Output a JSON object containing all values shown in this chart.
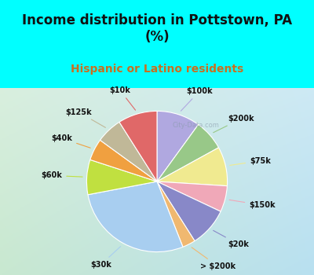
{
  "title": "Income distribution in Pottstown, PA\n(%)",
  "subtitle": "Hispanic or Latino residents",
  "bg_color": "#00FFFF",
  "chart_bg_colors": [
    "#c8e8d0",
    "#b8e0f0"
  ],
  "labels": [
    "$100k",
    "$200k",
    "$75k",
    "$150k",
    "$20k",
    "> $200k",
    "$30k",
    "$60k",
    "$40k",
    "$125k",
    "$10k"
  ],
  "sizes": [
    10,
    7,
    9,
    6,
    9,
    3,
    28,
    8,
    5,
    6,
    9
  ],
  "colors": [
    "#b0a8e0",
    "#98c888",
    "#f0ea90",
    "#f0a8b8",
    "#8888c8",
    "#f0b870",
    "#a8cef0",
    "#c0e040",
    "#f0a040",
    "#c0b898",
    "#e06868"
  ],
  "startangle": 90,
  "label_fontsize": 7,
  "title_fontsize": 12,
  "subtitle_fontsize": 10,
  "subtitle_color": "#c87020",
  "watermark": "City-Data.com",
  "line_colors": [
    "#b0a8e0",
    "#98c888",
    "#f0ea90",
    "#f0a8b8",
    "#8888c8",
    "#f0b870",
    "#a8cef0",
    "#c0e040",
    "#f0a040",
    "#c0b898",
    "#e06868"
  ]
}
